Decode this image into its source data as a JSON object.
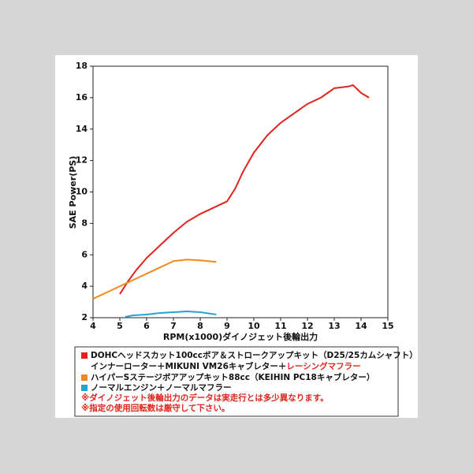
{
  "chart_data": {
    "type": "line",
    "xlabel": "RPM(x1000)ダイノジェット後輪出力",
    "ylabel": "SAE Power(PS)",
    "xlim": [
      4,
      15
    ],
    "xticks": [
      4,
      5,
      6,
      7,
      8,
      9,
      10,
      11,
      12,
      13,
      14,
      15
    ],
    "ylim": [
      2,
      18
    ],
    "yticks": [
      2,
      4,
      6,
      8,
      10,
      12,
      14,
      16,
      18
    ],
    "series": [
      {
        "name": "DOHCヘッドスカット100ccボア＆ストロークアップキット（D25/25カムシャフト）",
        "color": "#e0241b",
        "x": [
          5.0,
          5.3,
          5.6,
          6.0,
          6.5,
          7.0,
          7.5,
          8.0,
          8.5,
          9.0,
          9.3,
          9.6,
          10.0,
          10.5,
          11.0,
          11.5,
          12.0,
          12.5,
          13.0,
          13.5,
          13.7,
          14.0,
          14.3
        ],
        "values": [
          3.5,
          4.3,
          5.0,
          5.8,
          6.6,
          7.4,
          8.1,
          8.6,
          9.0,
          9.4,
          10.2,
          11.3,
          12.5,
          13.6,
          14.4,
          15.0,
          15.6,
          16.0,
          16.6,
          16.7,
          16.8,
          16.3,
          16.0
        ]
      },
      {
        "name": "ハイパーSステージボアアップキット88cc（KEIHIN PC18キャブレター）",
        "color": "#f08a1e",
        "x": [
          4.0,
          4.5,
          5.0,
          5.5,
          6.0,
          6.5,
          7.0,
          7.5,
          8.0,
          8.6
        ],
        "values": [
          3.2,
          3.6,
          4.0,
          4.4,
          4.8,
          5.2,
          5.6,
          5.7,
          5.65,
          5.55
        ]
      },
      {
        "name": "ノーマルエンジン＋ノーマルマフラー",
        "color": "#2a9fd6",
        "x": [
          5.2,
          5.5,
          6.0,
          6.5,
          7.0,
          7.5,
          8.0,
          8.6
        ],
        "values": [
          2.05,
          2.15,
          2.2,
          2.3,
          2.35,
          2.4,
          2.35,
          2.2
        ]
      }
    ],
    "legend_extra": [
      "インナーローター＋MIKUNI VM26キャブレター＋",
      "レーシングマフラー"
    ],
    "notes": [
      "※ダイノジェット後輪出力のデータは実走行とは多少異なります。",
      "※指定の使用回転数は厳守して下さい。"
    ]
  }
}
